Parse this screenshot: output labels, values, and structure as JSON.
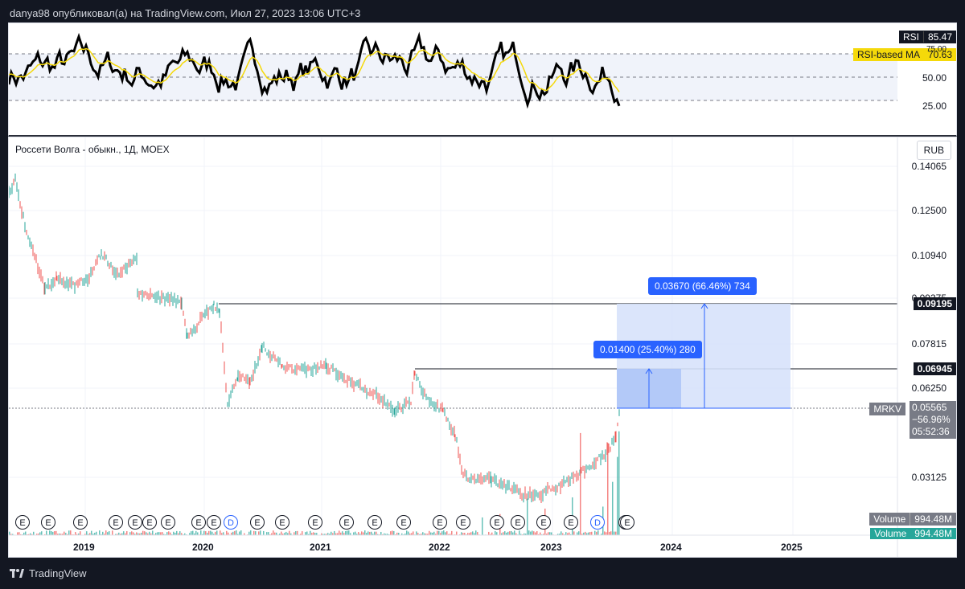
{
  "header": {
    "publish_line": "danya98 опубликовал(а) на TradingView.com, Июл 27, 2023 13:06 UTC+3"
  },
  "rsi": {
    "label": "RSI",
    "value": "85.47",
    "ma_label": "RSI-based MA",
    "ma_value": "70.63",
    "levels": [
      "75.00",
      "50.00",
      "25.00"
    ],
    "colors": {
      "rsi_line": "#000000",
      "ma_line": "#f5d90a",
      "band": "#f0f3fa"
    }
  },
  "main": {
    "legend": "Россети Волга - обыкн., 1Д, MOEX",
    "currency": "RUB",
    "y_ticks": [
      "0.14065",
      "0.12500",
      "0.10940",
      "0.09375",
      "0.07815",
      "0.06250",
      "0.03125"
    ],
    "x_ticks": [
      "2019",
      "2020",
      "2021",
      "2022",
      "2023",
      "2024",
      "2025"
    ],
    "hline_labels": [
      "0.09195",
      "0.06945"
    ],
    "price_tag": {
      "symbol": "MRKV",
      "price": "0.05565",
      "change": "−56.96%",
      "countdown": "05:52:36"
    },
    "volume_tags": [
      {
        "label": "Volume",
        "value": "994.48M"
      },
      {
        "label": "Volume",
        "value": "994.48M"
      }
    ],
    "measures": [
      {
        "text": "0.03670 (66.46%) 734"
      },
      {
        "text": "0.01400 (25.40%) 280"
      }
    ],
    "events": [
      "E",
      "E",
      "E",
      "E",
      "E",
      "E",
      "E",
      "E",
      "E",
      "D",
      "E",
      "E",
      "E",
      "E",
      "E",
      "E",
      "E",
      "E",
      "E",
      "E",
      "E",
      "E",
      "D",
      "E",
      "E"
    ],
    "colors": {
      "up": "#26a69a",
      "down": "#ef5350",
      "measure": "#2962ff",
      "measure_fill": "#d7e2fb",
      "measure_fill2": "#a9c2f7",
      "vol_tag": "#787b86",
      "vol_tag2": "#26a69a"
    }
  },
  "footer": {
    "brand": "TradingView"
  }
}
